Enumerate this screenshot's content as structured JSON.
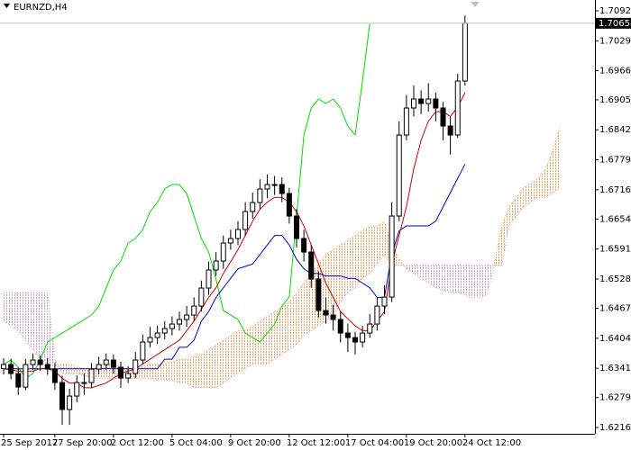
{
  "chart_data": {
    "type": "candlestick",
    "title": "EURNZD,H4",
    "x": [
      "25 Sep 2017",
      null,
      null,
      null,
      null,
      null,
      null,
      "27 Sep 20:00",
      null,
      null,
      null,
      null,
      null,
      null,
      null,
      "2 Oct 12:00",
      null,
      null,
      null,
      null,
      null,
      null,
      null,
      "5 Oct 04:00",
      null,
      null,
      null,
      null,
      null,
      null,
      null,
      "9 Oct 20:00",
      null,
      null,
      null,
      null,
      null,
      null,
      null,
      "12 Oct 12:00",
      null,
      null,
      null,
      null,
      null,
      null,
      null,
      "17 Oct 04:00",
      null,
      null,
      null,
      null,
      null,
      null,
      null,
      "19 Oct 20:00",
      null,
      null,
      null,
      null,
      null,
      null,
      null,
      "24 Oct 12:00",
      null,
      null,
      null,
      null,
      null,
      null,
      null,
      null,
      null,
      null,
      null,
      null,
      null
    ],
    "open": [
      1.634,
      1.63488,
      1.63299,
      1.63015,
      1.63488,
      1.63583,
      1.63488,
      1.63393,
      1.6311,
      1.62543,
      1.62826,
      1.6311,
      1.6311,
      1.63393,
      1.63488,
      1.63583,
      1.63431,
      1.63204,
      1.63299,
      1.63583,
      1.63961,
      1.64055,
      1.6415,
      1.64244,
      1.64339,
      1.64434,
      1.64528,
      1.64717,
      1.65095,
      1.65474,
      1.65663,
      1.66041,
      1.66136,
      1.66325,
      1.66703,
      1.66892,
      1.67176,
      1.6727,
      1.6727,
      1.67081,
      1.66608,
      1.66136,
      1.65852,
      1.65285,
      1.64623,
      1.64528,
      1.64434,
      1.6415,
      1.64055,
      1.63961,
      1.6415,
      1.64339,
      1.64717,
      1.64906,
      1.66608,
      1.6831,
      1.68878,
      1.69067,
      1.68972,
      1.69067,
      1.68878,
      1.68499,
      1.6831,
      1.69445,
      null,
      null,
      null,
      null,
      null,
      null,
      null,
      null,
      null,
      null,
      null,
      null,
      null
    ],
    "high": [
      1.6362,
      1.6361,
      1.6342,
      1.636,
      1.6372,
      1.6368,
      1.6362,
      1.6352,
      1.6325,
      1.6298,
      1.6326,
      1.633,
      1.6352,
      1.6365,
      1.6372,
      1.637,
      1.6355,
      1.6345,
      1.6375,
      1.6412,
      1.6428,
      1.643,
      1.644,
      1.645,
      1.646,
      1.6472,
      1.649,
      1.6525,
      1.6565,
      1.6585,
      1.662,
      1.6632,
      1.665,
      1.669,
      1.671,
      1.6738,
      1.6748,
      1.6745,
      1.6742,
      1.672,
      1.6675,
      1.6632,
      1.66,
      1.6545,
      1.649,
      1.6475,
      1.646,
      1.6435,
      1.6418,
      1.643,
      1.6455,
      1.649,
      1.6515,
      1.669,
      1.686,
      1.6915,
      1.6935,
      1.6925,
      1.694,
      1.692,
      1.69,
      1.687,
      1.696,
      1.7082,
      null,
      null,
      null,
      null,
      null,
      null,
      null,
      null,
      null,
      null,
      null,
      null,
      null
    ],
    "low": [
      1.6328,
      1.6318,
      1.6285,
      1.6295,
      1.6337,
      1.6336,
      1.6327,
      1.6296,
      1.6222,
      1.6222,
      1.627,
      1.6285,
      1.63,
      1.6328,
      1.6338,
      1.633,
      1.63,
      1.631,
      1.632,
      1.635,
      1.6385,
      1.6392,
      1.6402,
      1.641,
      1.642,
      1.6428,
      1.644,
      1.646,
      1.6495,
      1.6535,
      1.655,
      1.659,
      1.66,
      1.662,
      1.6655,
      1.6675,
      1.6698,
      1.6705,
      1.669,
      1.6645,
      1.6595,
      1.6565,
      1.651,
      1.6448,
      1.6435,
      1.642,
      1.6395,
      1.6375,
      1.637,
      1.6385,
      1.6405,
      1.642,
      1.6455,
      1.648,
      1.665,
      1.682,
      1.687,
      1.6875,
      1.688,
      1.686,
      1.682,
      1.679,
      1.6825,
      1.6935,
      null,
      null,
      null,
      null,
      null,
      null,
      null,
      null,
      null,
      null,
      null,
      null,
      null
    ],
    "close": [
      1.63488,
      1.63299,
      1.63015,
      1.63488,
      1.63583,
      1.63488,
      1.63393,
      1.6311,
      1.62543,
      1.62826,
      1.6311,
      1.6311,
      1.63393,
      1.63488,
      1.63583,
      1.63431,
      1.63204,
      1.63299,
      1.63583,
      1.63961,
      1.64055,
      1.6415,
      1.64244,
      1.64339,
      1.64434,
      1.64528,
      1.64717,
      1.65095,
      1.65474,
      1.65663,
      1.66041,
      1.66136,
      1.66325,
      1.66703,
      1.66892,
      1.67176,
      1.6727,
      1.6727,
      1.67081,
      1.66608,
      1.66136,
      1.65852,
      1.65285,
      1.64623,
      1.64528,
      1.64434,
      1.6415,
      1.64055,
      1.63961,
      1.6415,
      1.64339,
      1.64717,
      1.64906,
      1.66608,
      1.6831,
      1.68878,
      1.69067,
      1.68972,
      1.69067,
      1.68878,
      1.68499,
      1.6831,
      1.69445,
      1.70658,
      null,
      null,
      null,
      null,
      null,
      null,
      null,
      null,
      null,
      null,
      null,
      null,
      null
    ],
    "lines": [
      {
        "color": "#00e000",
        "values": [
          1.63488,
          1.63583,
          1.63431,
          1.63204,
          1.63299,
          1.63583,
          1.63961,
          1.64055,
          1.6415,
          1.64244,
          1.64339,
          1.64434,
          1.64528,
          1.64717,
          1.65095,
          1.65474,
          1.65663,
          1.66041,
          1.66136,
          1.66325,
          1.66703,
          1.66892,
          1.67176,
          1.6727,
          1.6727,
          1.67081,
          1.66608,
          1.66136,
          1.65852,
          1.65285,
          1.64623,
          1.64528,
          1.64434,
          1.6415,
          1.64055,
          1.63961,
          1.6415,
          1.64339,
          1.64717,
          1.64906,
          1.66608,
          1.6831,
          1.68878,
          1.69067,
          1.68972,
          1.69067,
          1.68878,
          1.68499,
          1.6831,
          1.69445,
          1.70658,
          null,
          null,
          null,
          null,
          null,
          null,
          null,
          null,
          null,
          null,
          null,
          null,
          null,
          null,
          null,
          null,
          null,
          null,
          null,
          null,
          null,
          null,
          null,
          null,
          null,
          null
        ]
      },
      {
        "color": "#0000c8",
        "values": [
          1.634,
          1.634,
          1.634,
          1.634,
          1.634,
          1.634,
          1.634,
          1.634,
          1.634,
          1.634,
          1.634,
          1.634,
          1.634,
          1.634,
          1.634,
          1.634,
          1.634,
          1.634,
          1.634,
          1.634,
          1.634,
          1.634,
          1.636,
          1.636,
          1.6385,
          1.6385,
          1.64,
          1.644,
          1.646,
          1.649,
          1.651,
          1.653,
          1.655,
          1.6555,
          1.656,
          1.658,
          1.66,
          1.662,
          1.662,
          1.66,
          1.657,
          1.655,
          1.654,
          1.654,
          1.6535,
          1.6535,
          1.6535,
          1.653,
          1.653,
          1.652,
          1.651,
          1.649,
          1.649,
          1.658,
          1.663,
          1.664,
          1.664,
          1.664,
          1.664,
          1.665,
          1.668,
          1.671,
          1.674,
          1.677,
          null,
          null,
          null,
          null,
          null,
          null,
          null,
          null,
          null,
          null,
          null,
          null,
          null
        ]
      },
      {
        "color": "#d00000",
        "values": [
          1.634,
          1.6338,
          1.6335,
          1.6335,
          1.6335,
          1.634,
          1.634,
          1.6335,
          1.632,
          1.631,
          1.631,
          1.63,
          1.63,
          1.6305,
          1.631,
          1.632,
          1.633,
          1.6335,
          1.634,
          1.635,
          1.636,
          1.637,
          1.638,
          1.639,
          1.64,
          1.642,
          1.644,
          1.6465,
          1.649,
          1.651,
          1.654,
          1.6565,
          1.659,
          1.662,
          1.665,
          1.6675,
          1.669,
          1.67,
          1.67,
          1.669,
          1.667,
          1.664,
          1.66,
          1.656,
          1.652,
          1.649,
          1.646,
          1.6445,
          1.643,
          1.642,
          1.642,
          1.644,
          1.646,
          1.656,
          1.662,
          1.668,
          1.676,
          1.682,
          1.686,
          1.688,
          1.688,
          1.687,
          1.689,
          1.692,
          null,
          null,
          null,
          null,
          null,
          null,
          null,
          null,
          null,
          null,
          null,
          null,
          null
        ]
      }
    ],
    "cloud": {
      "up_color": "#f4a460",
      "down_color": "#c8a2c8",
      "span_a": [
        1.644,
        1.643,
        1.642,
        1.64,
        1.638,
        1.636,
        1.635,
        1.6345,
        1.635,
        1.635,
        1.6345,
        1.634,
        1.634,
        1.6345,
        1.635,
        1.635,
        1.6345,
        1.634,
        1.634,
        1.6345,
        1.635,
        1.635,
        1.635,
        1.6355,
        1.636,
        1.636,
        1.6365,
        1.637,
        1.638,
        1.639,
        1.64,
        1.641,
        1.642,
        1.642,
        1.643,
        1.644,
        1.645,
        1.646,
        1.647,
        1.648,
        1.65,
        1.652,
        1.654,
        1.656,
        1.658,
        1.659,
        1.66,
        1.661,
        1.662,
        1.663,
        1.664,
        1.664,
        1.665,
        1.66,
        1.657,
        1.655,
        1.654,
        1.653,
        1.652,
        1.651,
        1.6505,
        1.65,
        1.65,
        1.6495,
        1.649,
        1.649,
        1.6495,
        1.656,
        1.664,
        1.668,
        1.67,
        1.672,
        1.673,
        1.674,
        1.676,
        1.68,
        1.685
      ],
      "span_b": [
        1.65,
        1.65,
        1.65,
        1.65,
        1.65,
        1.65,
        1.65,
        1.636,
        1.633,
        1.633,
        1.633,
        1.6325,
        1.632,
        1.632,
        1.632,
        1.632,
        1.632,
        1.632,
        1.632,
        1.632,
        1.632,
        1.6315,
        1.6315,
        1.6315,
        1.631,
        1.631,
        1.63,
        1.63,
        1.63,
        1.63,
        1.631,
        1.632,
        1.633,
        1.634,
        1.635,
        1.635,
        1.635,
        1.636,
        1.637,
        1.638,
        1.639,
        1.641,
        1.642,
        1.643,
        1.644,
        1.645,
        1.648,
        1.65,
        1.651,
        1.653,
        1.654,
        1.656,
        1.658,
        1.6557,
        1.6557,
        1.6557,
        1.6557,
        1.6557,
        1.6557,
        1.6557,
        1.6557,
        1.6557,
        1.6557,
        1.6557,
        1.6557,
        1.6557,
        1.6557,
        1.6557,
        1.6557,
        1.664,
        1.666,
        1.668,
        1.669,
        1.67,
        1.67,
        1.671,
        1.672
      ]
    },
    "ylim": [
      1.62033,
      1.71147
    ],
    "yticks": [
      {
        "value": 1.7092,
        "label": "1.70920"
      },
      {
        "value": 1.7029,
        "label": "1.70290"
      },
      1.69665,
      {
        "value": 1.6905,
        "label": "1.69050"
      },
      {
        "value": 1.6842,
        "label": "1.68420"
      },
      {
        "value": 1.6779,
        "label": "1.67790"
      },
      {
        "value": 1.6716,
        "label": "1.67160"
      },
      1.66545,
      1.65915,
      1.65285,
      {
        "value": 1.6467,
        "label": "1.64670"
      },
      {
        "value": 1.6404,
        "label": "1.64040"
      },
      {
        "value": 1.6341,
        "label": "1.63410"
      },
      1.62795,
      1.62165
    ],
    "grid": false
  }
}
